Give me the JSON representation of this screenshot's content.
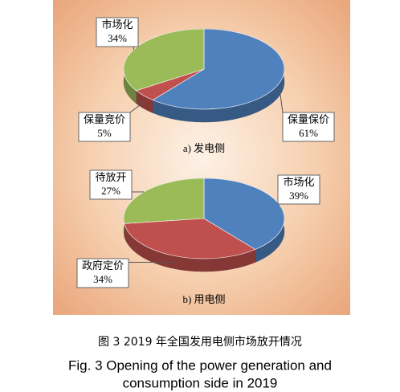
{
  "chart_data": [
    {
      "type": "pie",
      "title": "a) 发电侧",
      "categories": [
        "保量保价",
        "保量竞价",
        "市场化"
      ],
      "values": [
        61,
        5,
        34
      ],
      "value_labels": [
        "61%",
        "5%",
        "34%"
      ],
      "colors": [
        "#4f81bd",
        "#c0504d",
        "#9bbb59"
      ]
    },
    {
      "type": "pie",
      "title": "b) 用电侧",
      "categories": [
        "市场化",
        "政府定价",
        "待放开"
      ],
      "values": [
        39,
        34,
        27
      ],
      "value_labels": [
        "39%",
        "34%",
        "27%"
      ],
      "colors": [
        "#4f81bd",
        "#c0504d",
        "#9bbb59"
      ]
    }
  ],
  "caption_cn": "图 3   2019 年全国发用电侧市场放开情况",
  "caption_en": [
    "Fig. 3    Opening of the power generation and",
    "consumption side in 2019"
  ]
}
